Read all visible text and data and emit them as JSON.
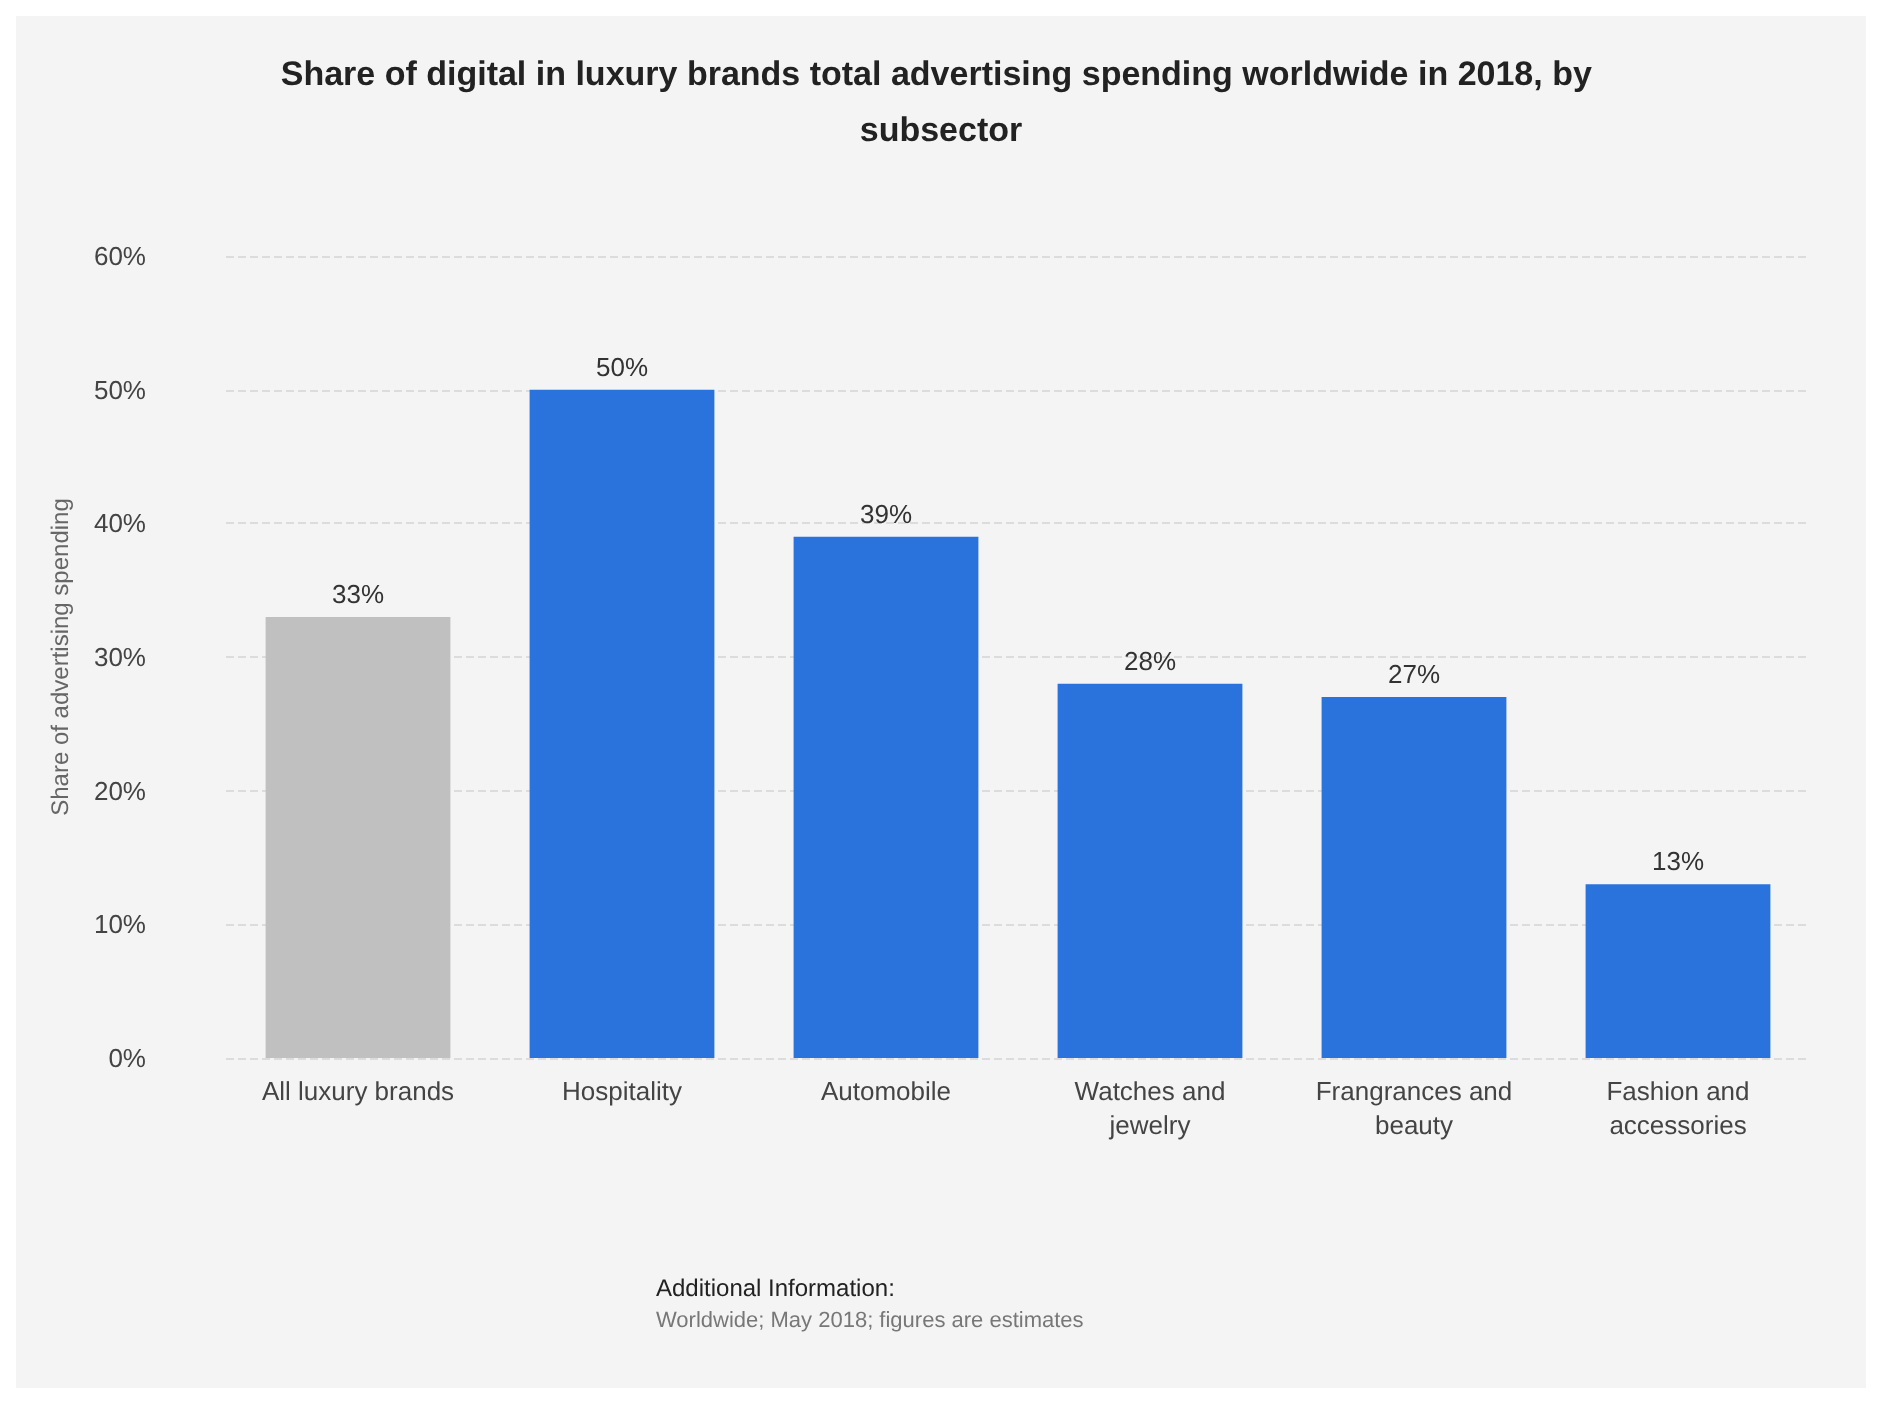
{
  "chart_data": {
    "type": "bar",
    "title": "Share of digital in luxury brands total advertising spending worldwide in 2018, by subsector",
    "ylabel": "Share of advertising spending",
    "categories": [
      "All luxury brands",
      "Hospitality",
      "Automobile",
      "Watches and\njewelry",
      "Frangrances and\nbeauty",
      "Fashion and\naccessories"
    ],
    "values": [
      33,
      50,
      39,
      28,
      27,
      13
    ],
    "colors": [
      "#c0c0c0",
      "#2a73dd",
      "#2a73dd",
      "#2a73dd",
      "#2a73dd",
      "#2a73dd"
    ],
    "value_labels": [
      "33%",
      "50%",
      "39%",
      "28%",
      "27%",
      "13%"
    ],
    "ylim": [
      0,
      60
    ],
    "yticks": [
      {
        "value": 0,
        "label": "0%"
      },
      {
        "value": 10,
        "label": "10%"
      },
      {
        "value": 20,
        "label": "20%"
      },
      {
        "value": 30,
        "label": "30%"
      },
      {
        "value": 40,
        "label": "40%"
      },
      {
        "value": 50,
        "label": "50%"
      },
      {
        "value": 60,
        "label": "60%"
      }
    ],
    "grid": "y",
    "annotations": [
      "Additional Information:",
      "Worldwide; May 2018; figures are estimates"
    ]
  }
}
